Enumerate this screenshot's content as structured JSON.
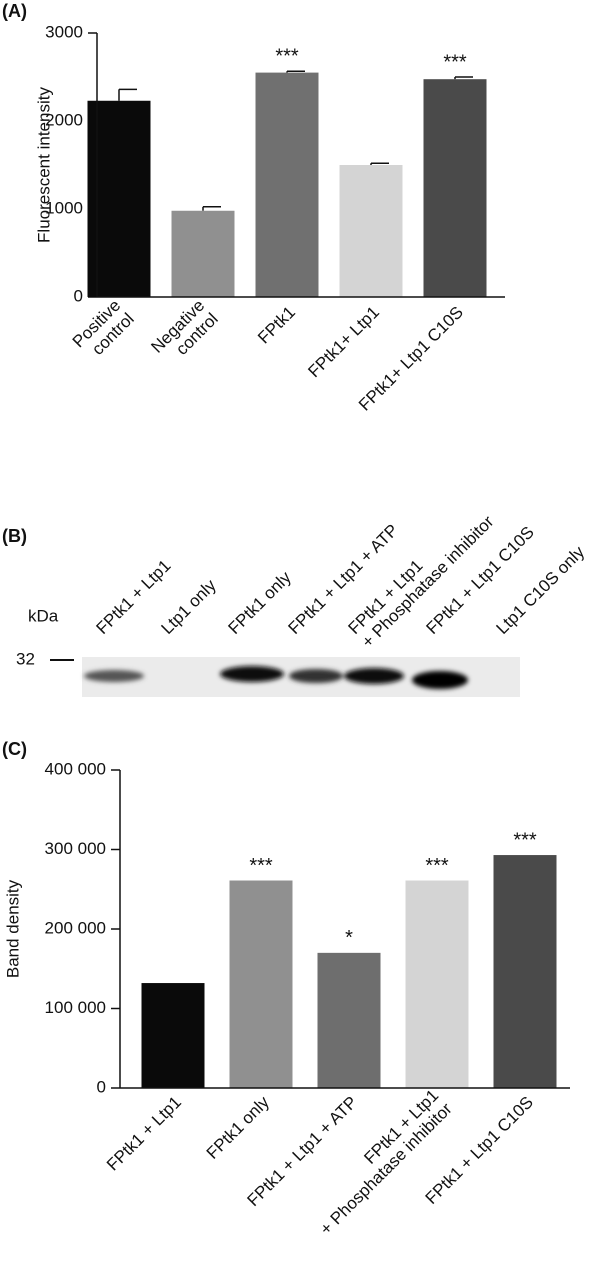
{
  "chart_data": [
    {
      "type": "bar",
      "panel": "(A)",
      "y_label": "Fluorescent intensity",
      "categories": [
        [
          "Positive",
          "control"
        ],
        [
          "Negative",
          "control"
        ],
        [
          "FPtk1"
        ],
        [
          "FPtk1+ Ltp1"
        ],
        [
          "FPtk1+ Ltp1 C10S"
        ]
      ],
      "values": [
        2230,
        980,
        2550,
        1500,
        2475
      ],
      "errors": [
        130,
        45,
        15,
        20,
        25
      ],
      "colors": [
        "#0a0a0a",
        "#909090",
        "#707070",
        "#d4d4d4",
        "#4a4a4a"
      ],
      "annotations": [
        null,
        null,
        "***",
        null,
        "***"
      ],
      "ylim": [
        0,
        3000
      ],
      "yticks": [
        0,
        1000,
        2000,
        3000
      ]
    },
    {
      "type": "bar",
      "panel": "(C)",
      "y_label": "Band density",
      "categories": [
        [
          "FPtk1 + Ltp1"
        ],
        [
          "FPtk1 only"
        ],
        [
          "FPtk1 + Ltp1 + ATP"
        ],
        [
          "FPtk1 + Ltp1",
          "+ Phosphatase inhibitor"
        ],
        [
          "FPtk1 + Ltp1 C10S"
        ]
      ],
      "values": [
        132000,
        261000,
        170000,
        261000,
        293000
      ],
      "colors": [
        "#0a0a0a",
        "#909090",
        "#6e6e6e",
        "#d4d4d4",
        "#4a4a4a"
      ],
      "annotations": [
        null,
        "***",
        "*",
        "***",
        "***"
      ],
      "ylim": [
        0,
        400000
      ],
      "yticks": [
        0,
        {
          "value": 100000,
          "label": "100 000"
        },
        {
          "value": 200000,
          "label": "200 000"
        },
        {
          "value": 300000,
          "label": "300 000"
        },
        {
          "value": 400000,
          "label": "400 000"
        }
      ]
    }
  ],
  "blot": {
    "panel": "(B)",
    "unit": "kDa",
    "marker": "32",
    "lanes": [
      [
        "FPtk1 + Ltp1"
      ],
      [
        "Ltp1 only"
      ],
      [
        "FPtk1 only"
      ],
      [
        "FPtk1 + Ltp1 + ATP"
      ],
      [
        "FPtk1 + Ltp1",
        "+ Phosphatase inhibitor"
      ],
      [
        "FPtk1 + Ltp1 C10S"
      ],
      [
        "Ltp1 C10S only"
      ]
    ]
  }
}
